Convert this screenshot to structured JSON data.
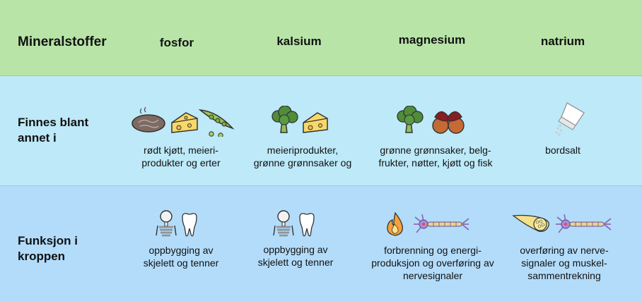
{
  "header": {
    "label": "Mineralstoffer",
    "columns": [
      "fosfor",
      "kalsium",
      "magnesium",
      "natrium"
    ]
  },
  "sources": {
    "label_line1": "Finnes blant",
    "label_line2": "annet i",
    "cells": [
      {
        "line1": "rødt kjøtt, meieri-",
        "line2": "produkter og erter"
      },
      {
        "line1": "meieriprodukter,",
        "line2": "grønne grønnsaker og"
      },
      {
        "line1": "grønne grønnsaker, belg-",
        "line2": "frukter, nøtter, kjøtt og fisk"
      },
      {
        "line1": "bordsalt",
        "line2": ""
      }
    ]
  },
  "function": {
    "label_line1": "Funksjon i",
    "label_line2": "kroppen",
    "cells": [
      {
        "line1": "oppbygging av",
        "line2": "skjelett og tenner",
        "line3": ""
      },
      {
        "line1": "oppbygging av",
        "line2": "skjelett og tenner",
        "line3": ""
      },
      {
        "line1": "forbrenning og energi-",
        "line2": "produksjon og overføring av",
        "line3": "nervesignaler"
      },
      {
        "line1": "overføring av nerve-",
        "line2": "signaler og muskel-",
        "line3": "sammentrekning"
      }
    ]
  },
  "colors": {
    "header_bg": "#b8e4a8",
    "sources_bg": "#bde9f8",
    "function_bg": "#b3dcfa"
  }
}
